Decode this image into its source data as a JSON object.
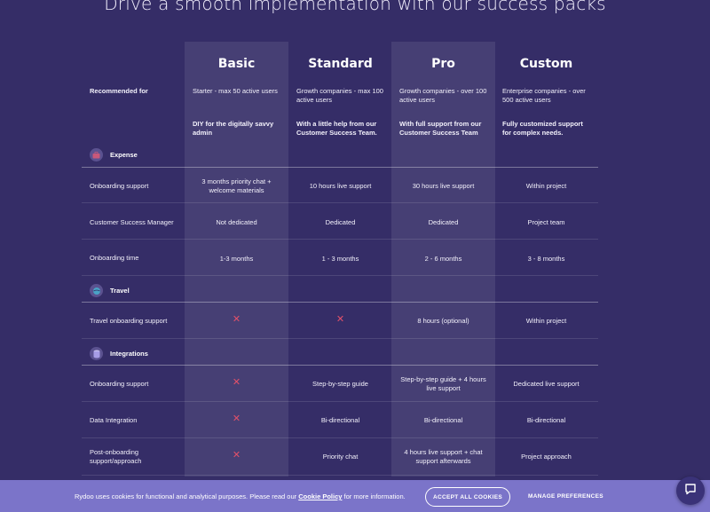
{
  "title": "Drive a smooth implementation with our success packs",
  "plans": [
    "Basic",
    "Standard",
    "Pro",
    "Custom"
  ],
  "recommended_label": "Recommended for",
  "recommended": [
    "Starter - max 50 active users",
    "Growth companies - max 100 active users",
    "Growth companies - over 100 active users",
    "Enterprise companies - over 500 active users"
  ],
  "descriptions": [
    "DIY for the digitally savvy admin",
    "With a little help from our Customer Success Team.",
    "With full support from our Customer Success Team",
    "Fully customized support for complex needs."
  ],
  "sections": {
    "expense": "Expense",
    "travel": "Travel",
    "integrations": "Integrations"
  },
  "rows": {
    "onboarding_support": {
      "label": "Onboarding support",
      "values": [
        "3 months priority chat + welcome materials",
        "10 hours live support",
        "30 hours live support",
        "Within project"
      ]
    },
    "csm": {
      "label": "Customer Success Manager",
      "values": [
        "Not dedicated",
        "Dedicated",
        "Dedicated",
        "Project team"
      ]
    },
    "onboarding_time": {
      "label": "Onboarding time",
      "values": [
        "1-3 months",
        "1 - 3 months",
        "2 - 6 months",
        "3 - 8 months"
      ]
    },
    "travel_onboarding": {
      "label": "Travel onboarding support",
      "values": [
        "✕",
        "✕",
        "8 hours (optional)",
        "Within project"
      ]
    },
    "int_onboarding": {
      "label": "Onboarding support",
      "values": [
        "✕",
        "Step-by-step guide",
        "Step-by-step guide + 4 hours live support",
        "Dedicated live support"
      ]
    },
    "data_integration": {
      "label": "Data Integration",
      "values": [
        "✕",
        "Bi-directional",
        "Bi-directional",
        "Bi-directional"
      ]
    },
    "post_onboarding": {
      "label": "Post-onboarding support/approach",
      "values": [
        "✕",
        "Priority chat",
        "4 hours live support + chat support afterwards",
        "Project approach"
      ]
    }
  },
  "cookie": {
    "text_before": "Rydoo uses cookies for functional and analytical purposes. Please read our ",
    "policy_link": "Cookie Policy",
    "text_after": " for more information.",
    "accept": "ACCEPT ALL COOKIES",
    "manage": "MANAGE PREFERENCES"
  },
  "colors": {
    "background": "#352d67",
    "cookie_bar": "#7b74c9",
    "x_mark": "#e2516a"
  }
}
